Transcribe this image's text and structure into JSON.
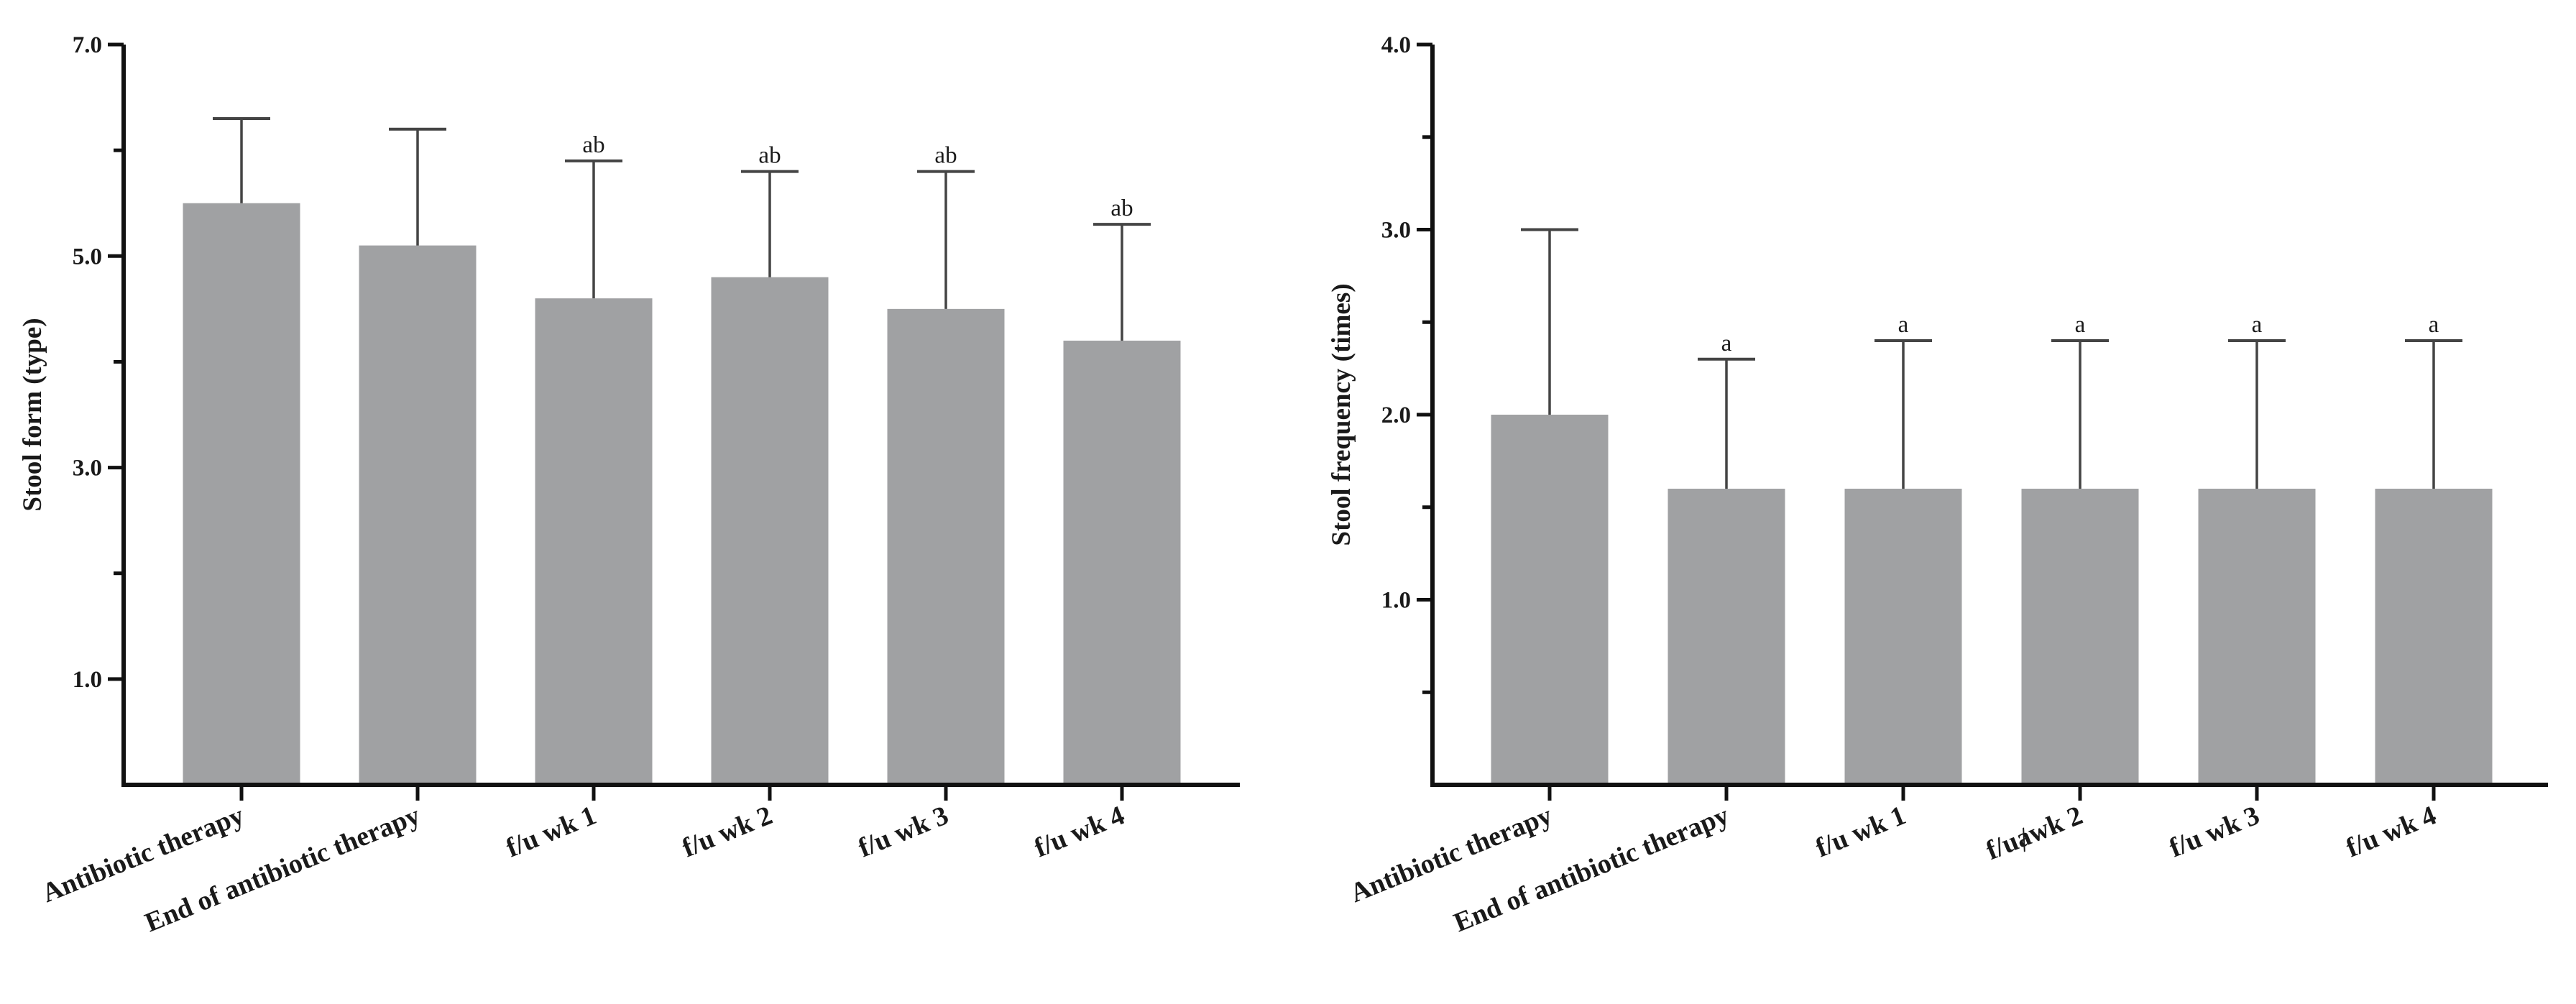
{
  "chart_data": [
    {
      "type": "bar",
      "categories": [
        "Antibiotic therapy",
        "End of antibiotic therapy",
        "f/u wk 1",
        "f/u wk 2",
        "f/u wk 3",
        "f/u wk 4"
      ],
      "values": [
        5.5,
        5.1,
        4.6,
        4.8,
        4.5,
        4.2
      ],
      "error_upper": [
        6.3,
        6.2,
        5.9,
        5.8,
        5.8,
        5.3
      ],
      "annotations": [
        "",
        "",
        "ab",
        "ab",
        "ab",
        "ab"
      ],
      "ylabel": "Stool form (type)",
      "xlabel": "",
      "ylim": [
        0,
        7.0
      ],
      "yticks": [
        1.0,
        3.0,
        5.0,
        7.0
      ],
      "ytick_labels": [
        "1.0",
        "3.0",
        "5.0",
        "7.0"
      ],
      "grid": false,
      "bar_color": "#a0a1a3"
    },
    {
      "type": "bar",
      "categories": [
        "Antibiotic therapy",
        "End of antibiotic therapy",
        "f/u wk 1",
        "f/uⱥwk 2",
        "f/u wk 3",
        "f/u wk 4"
      ],
      "values": [
        2.0,
        1.6,
        1.6,
        1.6,
        1.6,
        1.6
      ],
      "error_upper": [
        3.0,
        2.3,
        2.4,
        2.4,
        2.4,
        2.4
      ],
      "annotations": [
        "",
        "a",
        "a",
        "a",
        "a",
        "a"
      ],
      "ylabel": "Stool frequency (times)",
      "xlabel": "",
      "ylim": [
        0,
        4.0
      ],
      "yticks": [
        1.0,
        2.0,
        3.0,
        4.0
      ],
      "ytick_labels": [
        "1.0",
        "2.0",
        "3.0",
        "4.0"
      ],
      "grid": false,
      "bar_color": "#a0a1a3"
    }
  ]
}
